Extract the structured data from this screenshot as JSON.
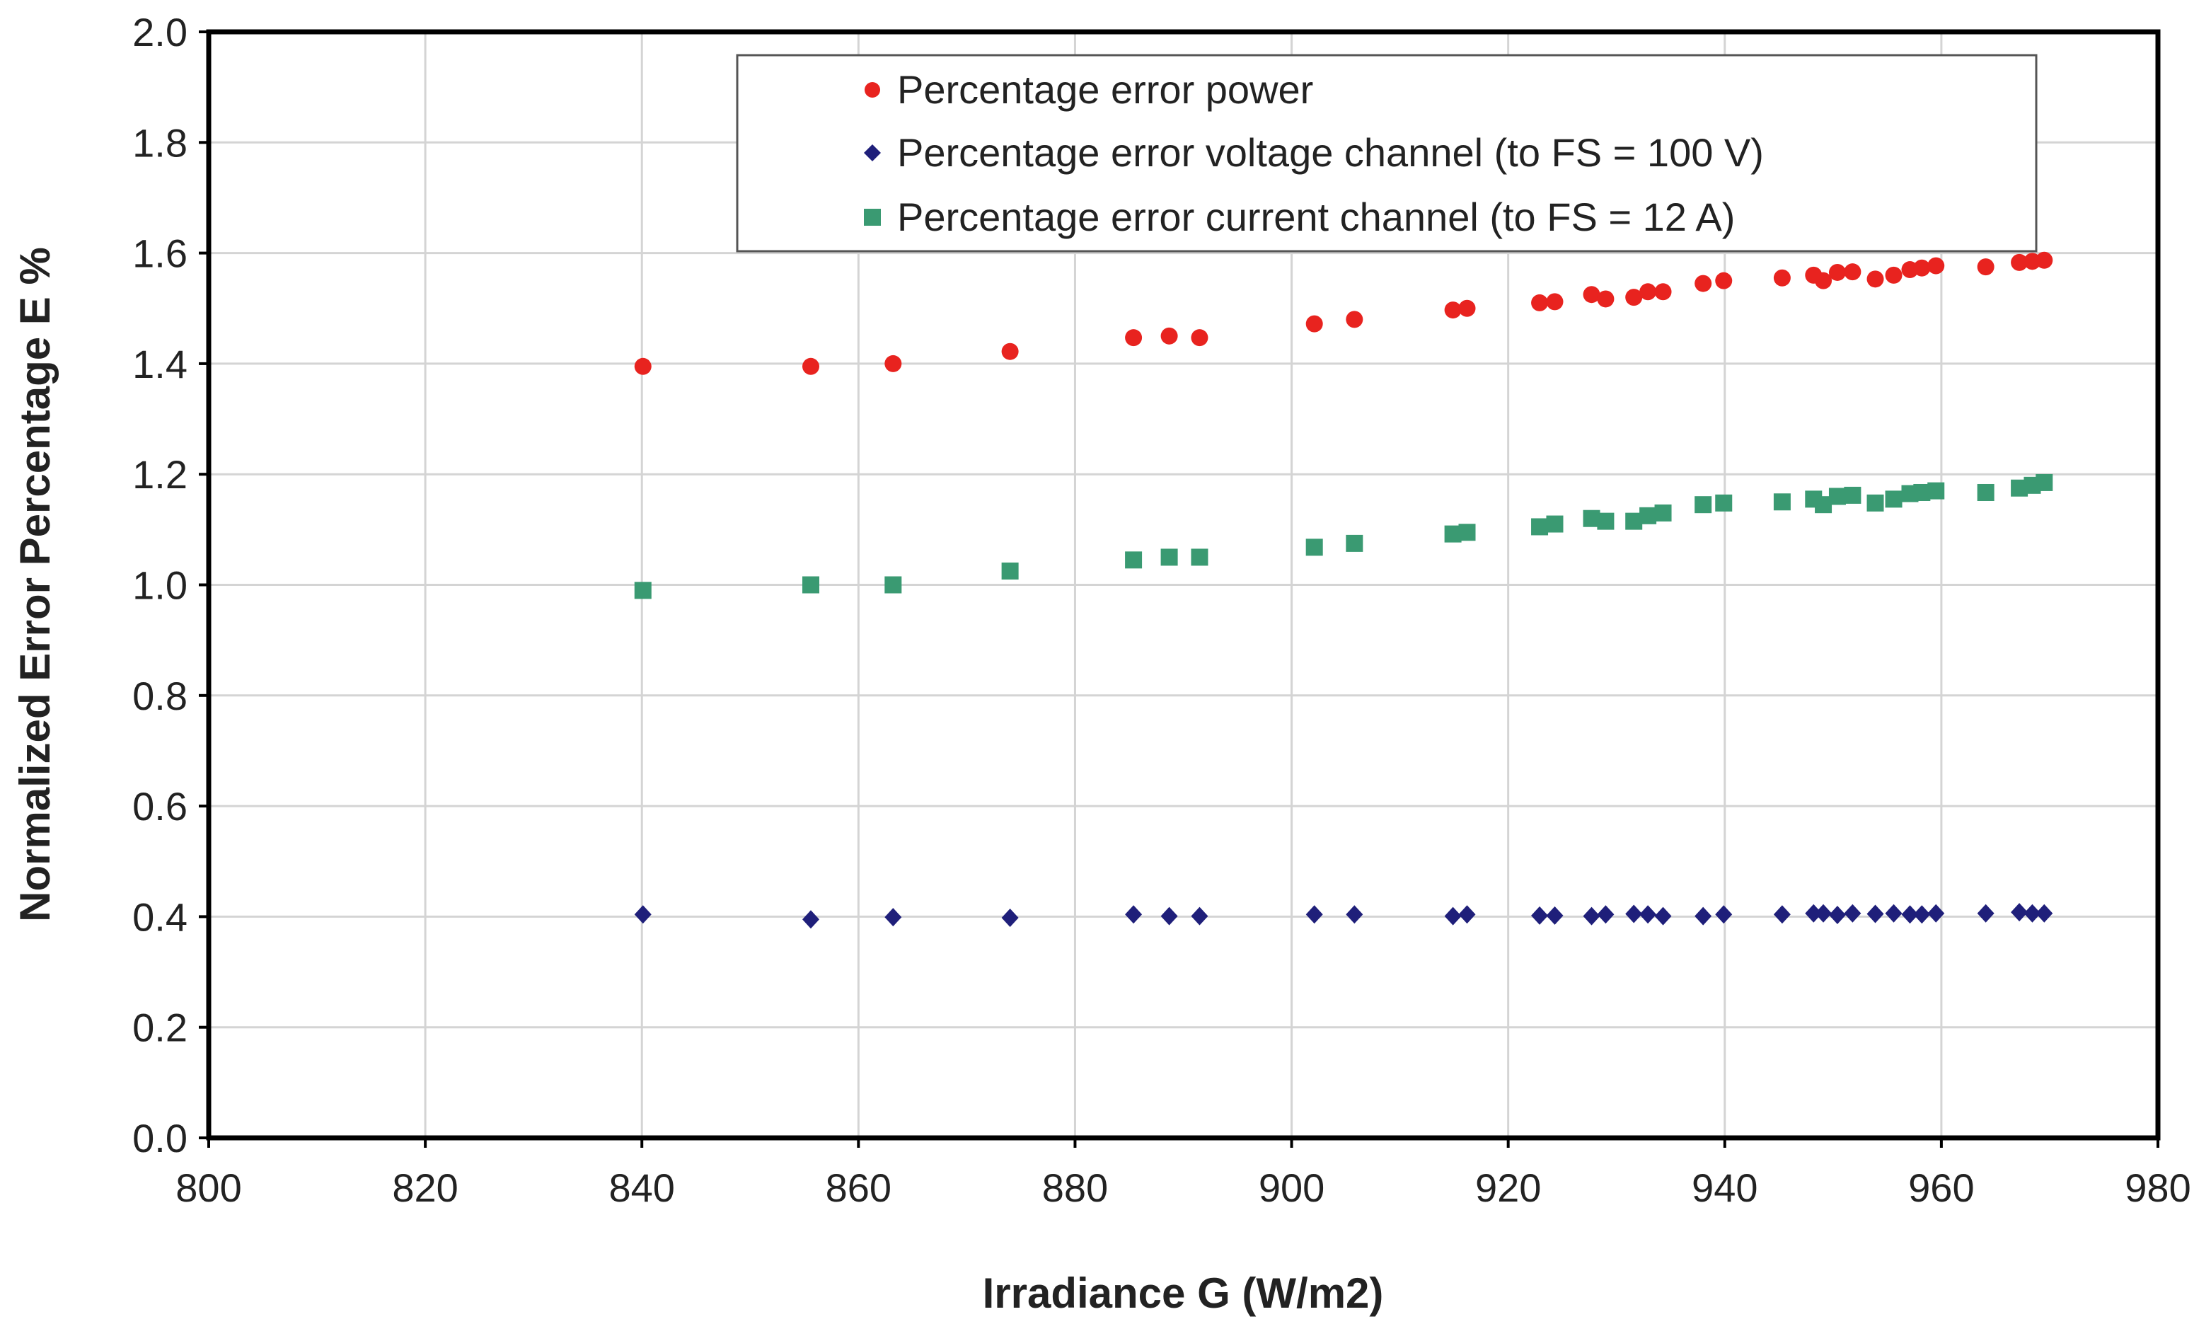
{
  "chart_data": {
    "type": "scatter",
    "title": "",
    "xlabel": "Irradiance G (W/m2)",
    "ylabel": "Normalized Error Percentage E %",
    "xlim": [
      800,
      980
    ],
    "ylim": [
      0.0,
      2.0
    ],
    "xticks": [
      "800",
      "820",
      "840",
      "860",
      "880",
      "900",
      "920",
      "940",
      "960",
      "980"
    ],
    "yticks": [
      "0.0",
      "0.2",
      "0.4",
      "0.6",
      "0.8",
      "1.0",
      "1.2",
      "1.4",
      "1.6",
      "1.8",
      "2.0"
    ],
    "grid": true,
    "legend_position": "top-right",
    "series": [
      {
        "name": "Percentage error power",
        "marker": "circle",
        "color": "#e8231f",
        "points": [
          [
            840.1,
            1.395
          ],
          [
            855.6,
            1.395
          ],
          [
            863.2,
            1.4
          ],
          [
            874.0,
            1.422
          ],
          [
            885.4,
            1.447
          ],
          [
            888.7,
            1.45
          ],
          [
            891.5,
            1.447
          ],
          [
            902.1,
            1.472
          ],
          [
            905.8,
            1.48
          ],
          [
            914.9,
            1.497
          ],
          [
            916.2,
            1.5
          ],
          [
            922.9,
            1.51
          ],
          [
            924.3,
            1.512
          ],
          [
            927.7,
            1.525
          ],
          [
            929.0,
            1.517
          ],
          [
            931.6,
            1.52
          ],
          [
            932.9,
            1.53
          ],
          [
            934.3,
            1.53
          ],
          [
            938.0,
            1.545
          ],
          [
            939.9,
            1.55
          ],
          [
            945.3,
            1.555
          ],
          [
            948.2,
            1.56
          ],
          [
            949.1,
            1.55
          ],
          [
            950.4,
            1.565
          ],
          [
            951.8,
            1.566
          ],
          [
            953.9,
            1.553
          ],
          [
            955.6,
            1.56
          ],
          [
            957.1,
            1.57
          ],
          [
            958.2,
            1.573
          ],
          [
            959.5,
            1.577
          ],
          [
            964.1,
            1.575
          ],
          [
            967.2,
            1.583
          ],
          [
            968.4,
            1.585
          ],
          [
            969.5,
            1.587
          ]
        ]
      },
      {
        "name": "Percentage error voltage channel (to FS = 100 V)",
        "marker": "diamond",
        "color": "#1f1f7a",
        "points": [
          [
            840.1,
            0.404
          ],
          [
            855.6,
            0.395
          ],
          [
            863.2,
            0.399
          ],
          [
            874.0,
            0.398
          ],
          [
            885.4,
            0.404
          ],
          [
            888.7,
            0.401
          ],
          [
            891.5,
            0.401
          ],
          [
            902.1,
            0.404
          ],
          [
            905.8,
            0.404
          ],
          [
            914.9,
            0.401
          ],
          [
            916.2,
            0.404
          ],
          [
            922.9,
            0.402
          ],
          [
            924.3,
            0.402
          ],
          [
            927.7,
            0.401
          ],
          [
            929.0,
            0.404
          ],
          [
            931.6,
            0.405
          ],
          [
            932.9,
            0.404
          ],
          [
            934.3,
            0.401
          ],
          [
            938.0,
            0.401
          ],
          [
            939.9,
            0.404
          ],
          [
            945.3,
            0.404
          ],
          [
            948.2,
            0.406
          ],
          [
            949.1,
            0.406
          ],
          [
            950.4,
            0.403
          ],
          [
            951.8,
            0.406
          ],
          [
            953.9,
            0.405
          ],
          [
            955.6,
            0.406
          ],
          [
            957.1,
            0.404
          ],
          [
            958.2,
            0.404
          ],
          [
            959.5,
            0.406
          ],
          [
            964.1,
            0.406
          ],
          [
            967.2,
            0.408
          ],
          [
            968.4,
            0.406
          ],
          [
            969.5,
            0.406
          ]
        ]
      },
      {
        "name": "Percentage error current channel (to FS = 12 A)",
        "marker": "square",
        "color": "#3a9a72",
        "points": [
          [
            840.1,
            0.99
          ],
          [
            855.6,
            1.0
          ],
          [
            863.2,
            1.0
          ],
          [
            874.0,
            1.025
          ],
          [
            885.4,
            1.045
          ],
          [
            888.7,
            1.05
          ],
          [
            891.5,
            1.05
          ],
          [
            902.1,
            1.068
          ],
          [
            905.8,
            1.075
          ],
          [
            914.9,
            1.092
          ],
          [
            916.2,
            1.095
          ],
          [
            922.9,
            1.105
          ],
          [
            924.3,
            1.11
          ],
          [
            927.7,
            1.12
          ],
          [
            929.0,
            1.115
          ],
          [
            931.6,
            1.115
          ],
          [
            932.9,
            1.125
          ],
          [
            934.3,
            1.13
          ],
          [
            938.0,
            1.145
          ],
          [
            939.9,
            1.148
          ],
          [
            945.3,
            1.15
          ],
          [
            948.2,
            1.155
          ],
          [
            949.1,
            1.145
          ],
          [
            950.4,
            1.16
          ],
          [
            951.8,
            1.162
          ],
          [
            953.9,
            1.148
          ],
          [
            955.6,
            1.155
          ],
          [
            957.1,
            1.165
          ],
          [
            958.2,
            1.167
          ],
          [
            959.5,
            1.17
          ],
          [
            964.1,
            1.167
          ],
          [
            967.2,
            1.175
          ],
          [
            968.4,
            1.18
          ],
          [
            969.5,
            1.185
          ]
        ]
      }
    ]
  }
}
